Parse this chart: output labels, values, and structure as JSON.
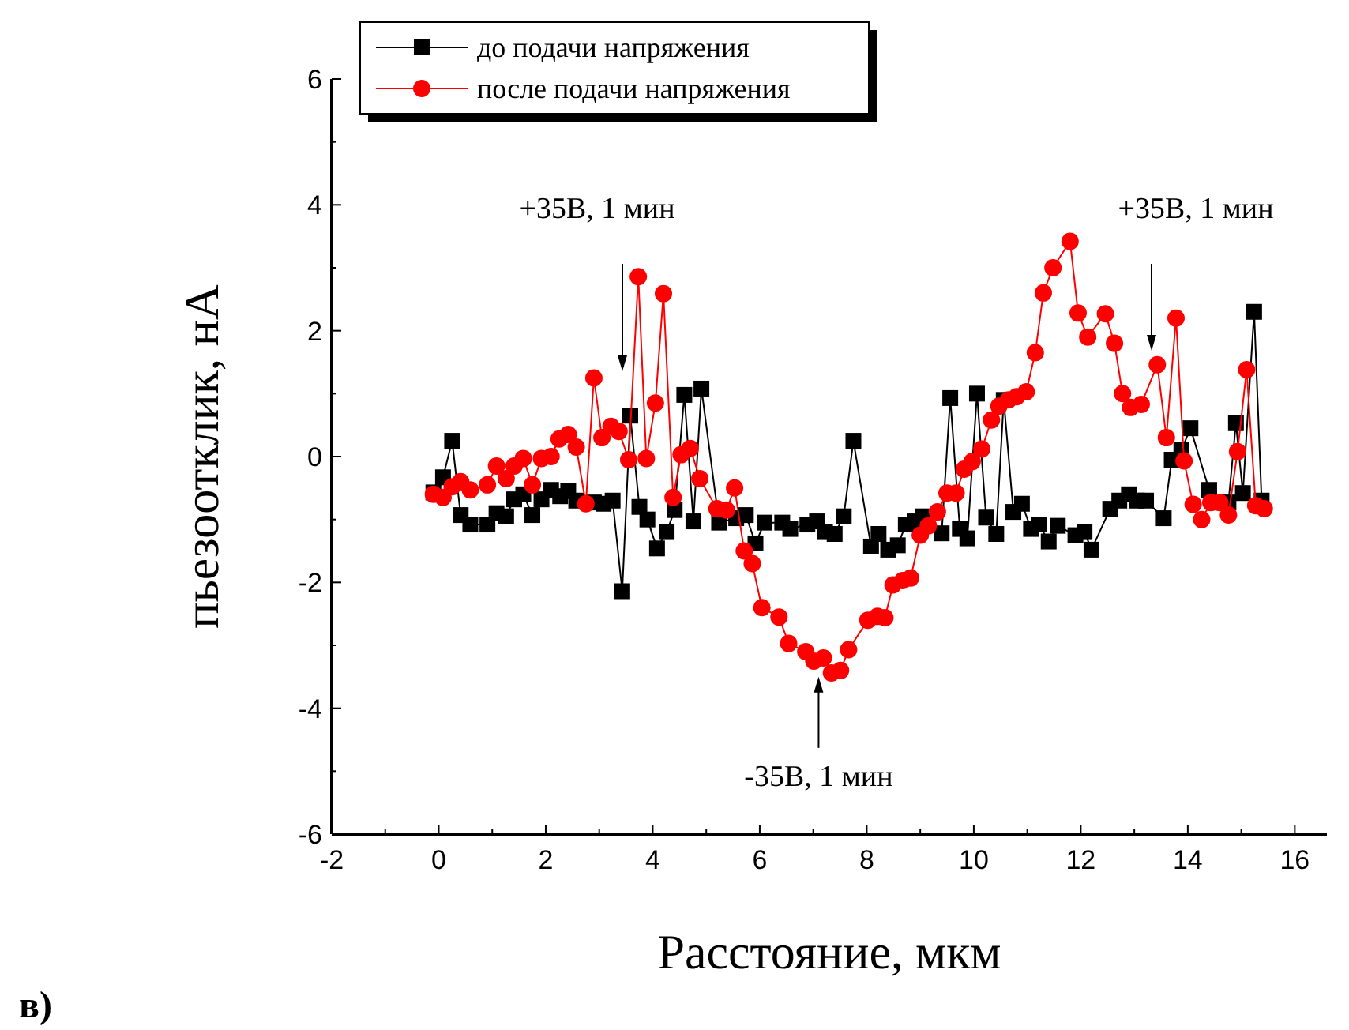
{
  "chart_data": {
    "type": "line",
    "xlabel": "Расстояние, мкм",
    "ylabel": "пьезоотклик, нА",
    "xlim": [
      -2,
      16.6
    ],
    "ylim": [
      -6,
      6
    ],
    "xticks": [
      -2,
      {
        "value": -1,
        "label": null
      },
      0,
      {
        "value": 1,
        "label": null
      },
      2,
      {
        "value": 3,
        "label": null
      },
      4,
      {
        "value": 5,
        "label": null
      },
      6,
      {
        "value": 7,
        "label": null
      },
      8,
      {
        "value": 9,
        "label": null
      },
      10,
      {
        "value": 11,
        "label": null
      },
      12,
      {
        "value": 13,
        "label": null
      },
      14,
      {
        "value": 15,
        "label": null
      },
      16
    ],
    "yticks": [
      -6,
      {
        "value": -5,
        "label": null
      },
      -4,
      {
        "value": -3,
        "label": null
      },
      -2,
      {
        "value": -1,
        "label": null
      },
      0,
      {
        "value": 1,
        "label": null
      },
      2,
      {
        "value": 3,
        "label": null
      },
      4,
      {
        "value": 5,
        "label": null
      },
      6
    ],
    "grid": false,
    "legend": "top left",
    "line_style": "solid",
    "series": [
      {
        "name": "до подачи напряжения",
        "color": "#000000",
        "marker": "square",
        "x": [
          -0.1,
          0.08,
          0.25,
          0.41,
          0.59,
          0.91,
          1.08,
          1.26,
          1.41,
          1.58,
          1.75,
          1.92,
          2.1,
          2.27,
          2.42,
          2.57,
          2.9,
          3.08,
          3.25,
          3.43,
          3.58,
          3.75,
          3.9,
          4.08,
          4.26,
          4.41,
          4.59,
          4.76,
          4.91,
          5.24,
          5.56,
          5.74,
          5.92,
          6.09,
          6.42,
          6.57,
          6.89,
          7.07,
          7.22,
          7.4,
          7.57,
          7.75,
          8.08,
          8.22,
          8.4,
          8.58,
          8.73,
          8.9,
          9.05,
          9.4,
          9.56,
          9.74,
          9.88,
          10.06,
          10.23,
          10.42,
          10.56,
          10.74,
          10.9,
          11.07,
          11.22,
          11.4,
          11.57,
          11.9,
          12.07,
          12.2,
          12.55,
          12.72,
          12.9,
          13.05,
          13.22,
          13.55,
          13.7,
          13.88,
          14.05,
          14.4,
          14.56,
          14.76,
          14.9,
          15.03,
          15.24,
          15.38
        ],
        "values": [
          -0.57,
          -0.33,
          0.25,
          -0.93,
          -1.08,
          -1.08,
          -0.9,
          -0.95,
          -0.68,
          -0.6,
          -0.93,
          -0.68,
          -0.53,
          -0.63,
          -0.55,
          -0.7,
          -0.73,
          -0.75,
          -0.7,
          -2.14,
          0.65,
          -0.8,
          -1.0,
          -1.46,
          -1.2,
          -0.85,
          0.98,
          -1.03,
          1.08,
          -1.05,
          -0.98,
          -0.93,
          -1.38,
          -1.05,
          -1.05,
          -1.15,
          -1.08,
          -1.03,
          -1.2,
          -1.23,
          -0.95,
          0.25,
          -1.43,
          -1.23,
          -1.48,
          -1.41,
          -1.08,
          -1.03,
          -0.95,
          -1.22,
          0.93,
          -1.15,
          -1.3,
          1.0,
          -0.97,
          -1.23,
          0.9,
          -0.88,
          -0.75,
          -1.15,
          -1.08,
          -1.35,
          -1.1,
          -1.25,
          -1.2,
          -1.48,
          -0.83,
          -0.7,
          -0.6,
          -0.7,
          -0.7,
          -0.98,
          -0.05,
          0.1,
          0.45,
          -0.53,
          -0.73,
          -0.73,
          0.53,
          -0.58,
          2.3,
          -0.7
        ]
      },
      {
        "name": "после подачи напряжения",
        "color": "#ff0000",
        "marker": "circle",
        "x": [
          -0.1,
          0.08,
          0.25,
          0.41,
          0.59,
          0.91,
          1.08,
          1.26,
          1.41,
          1.58,
          1.75,
          1.92,
          2.1,
          2.25,
          2.42,
          2.57,
          2.75,
          2.9,
          3.05,
          3.22,
          3.37,
          3.55,
          3.73,
          3.88,
          4.05,
          4.2,
          4.38,
          4.53,
          4.7,
          4.88,
          5.2,
          5.38,
          5.53,
          5.71,
          5.86,
          6.04,
          6.36,
          6.54,
          6.86,
          7.01,
          7.19,
          7.34,
          7.51,
          7.66,
          8.02,
          8.2,
          8.34,
          8.49,
          8.67,
          8.82,
          9.0,
          9.15,
          9.32,
          9.5,
          9.67,
          9.82,
          9.97,
          10.15,
          10.33,
          10.47,
          10.65,
          10.8,
          10.98,
          11.15,
          11.3,
          11.48,
          11.8,
          11.95,
          12.13,
          12.46,
          12.63,
          12.78,
          12.93,
          13.13,
          13.43,
          13.6,
          13.78,
          13.93,
          14.1,
          14.26,
          14.43,
          14.6,
          14.76,
          14.93,
          15.1,
          15.27,
          15.43
        ],
        "values": [
          -0.6,
          -0.65,
          -0.48,
          -0.4,
          -0.53,
          -0.45,
          -0.15,
          -0.35,
          -0.15,
          -0.03,
          -0.45,
          -0.03,
          0.0,
          0.28,
          0.35,
          0.15,
          -0.75,
          1.25,
          0.3,
          0.48,
          0.4,
          -0.05,
          2.86,
          -0.03,
          0.85,
          2.59,
          -0.65,
          0.03,
          0.13,
          -0.35,
          -0.83,
          -0.85,
          -0.5,
          -1.5,
          -1.7,
          -2.4,
          -2.55,
          -2.97,
          -3.1,
          -3.25,
          -3.2,
          -3.44,
          -3.4,
          -3.07,
          -2.6,
          -2.54,
          -2.56,
          -2.04,
          -1.97,
          -1.93,
          -1.25,
          -1.1,
          -0.88,
          -0.58,
          -0.58,
          -0.2,
          -0.08,
          0.12,
          0.58,
          0.8,
          0.9,
          0.95,
          1.03,
          1.65,
          2.6,
          3.0,
          3.42,
          2.28,
          1.9,
          2.27,
          1.8,
          1.0,
          0.78,
          0.83,
          1.46,
          0.3,
          2.2,
          -0.07,
          -0.76,
          -1.0,
          -0.73,
          -0.73,
          -0.93,
          0.08,
          1.38,
          -0.78,
          -0.83
        ]
      }
    ],
    "annotations": [
      "+35В, 1 мин",
      {
        "text": "-35В, 1 мин",
        "x": 7.1,
        "y": -3.5
      },
      "+35В, 1 мин",
      "в)"
    ]
  }
}
